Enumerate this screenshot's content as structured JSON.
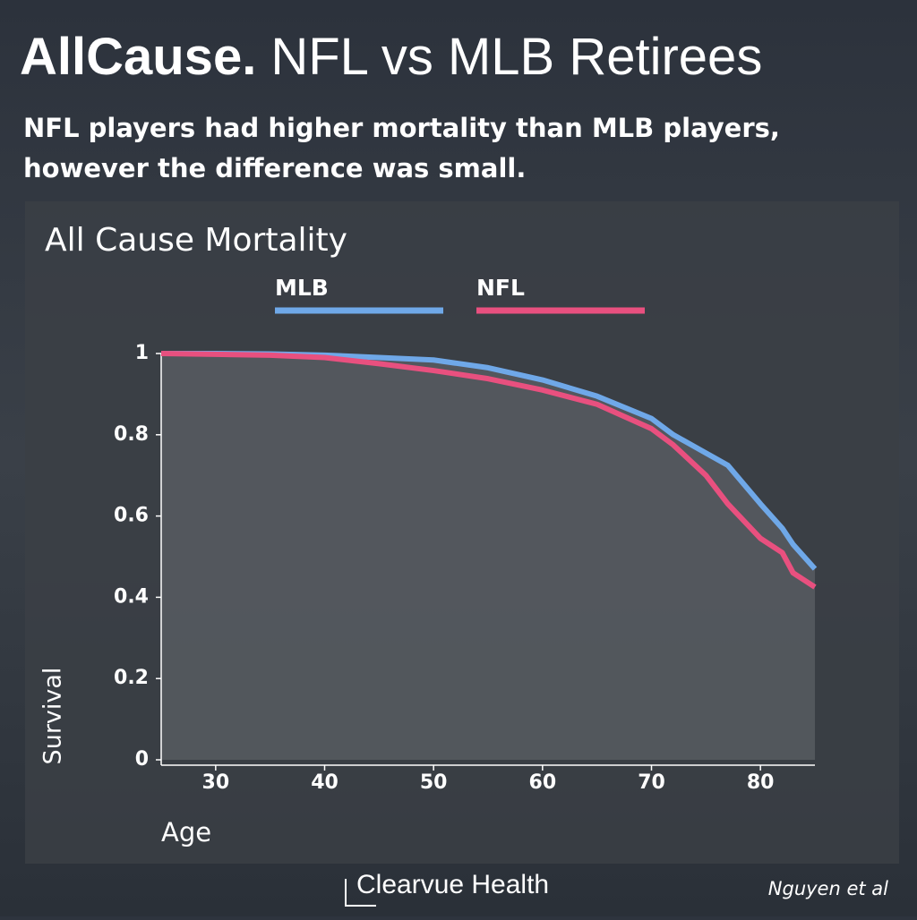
{
  "chart_data": {
    "type": "line",
    "title_lead": "AllCause.",
    "title": "NFL vs MLB Retirees",
    "subtitle": [
      "NFL players had higher mortality than MLB players,",
      "however the difference was small."
    ],
    "chart_title": "All Cause Mortality",
    "x_label": "Age",
    "y_label": "Survival",
    "x": [
      25,
      30,
      35,
      40,
      45,
      50,
      55,
      60,
      65,
      70,
      72,
      75,
      77,
      80,
      82,
      83,
      85
    ],
    "series": [
      {
        "name": "MLB",
        "color": "#6fa8e8",
        "values": [
          1,
          1,
          0.999,
          0.996,
          0.99,
          0.984,
          0.965,
          0.935,
          0.895,
          0.84,
          0.8,
          0.755,
          0.725,
          0.63,
          0.57,
          0.53,
          0.47
        ]
      },
      {
        "name": "NFL",
        "color": "#e8507f",
        "values": [
          1,
          0.998,
          0.996,
          0.99,
          0.975,
          0.958,
          0.938,
          0.91,
          0.875,
          0.815,
          0.775,
          0.7,
          0.63,
          0.545,
          0.51,
          0.46,
          0.425
        ]
      }
    ],
    "xlim": [
      25,
      85
    ],
    "xticks": [
      30,
      40,
      50,
      60,
      70,
      80
    ],
    "ylim": [
      0,
      1
    ],
    "yticks": [
      0,
      0.2,
      0.4,
      0.6,
      0.8,
      1
    ],
    "brand": "Clearvue Health",
    "source": "Nguyen et al"
  }
}
